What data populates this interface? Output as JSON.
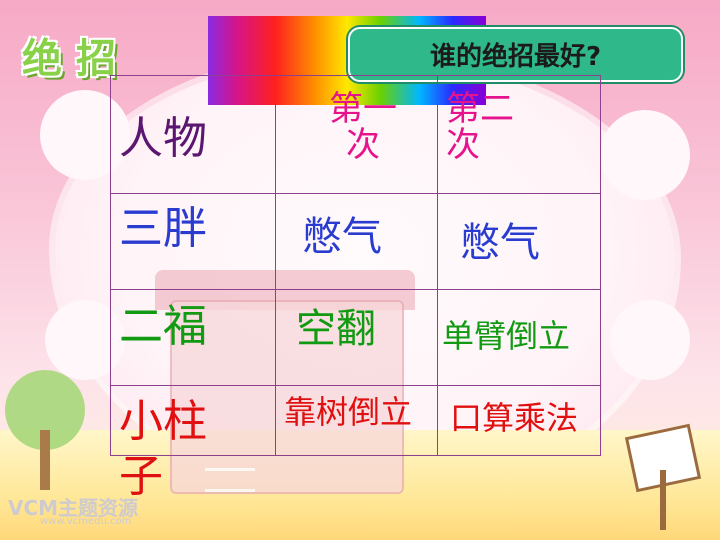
{
  "logo_text": "绝招",
  "banner_text": "谁的绝招最好?",
  "watermark": {
    "brand": "VCM主题资源",
    "url": "www.vcmedu.com"
  },
  "table": {
    "header": {
      "col1": "人物",
      "col2": "第一次",
      "col3": "第二次"
    },
    "rows": [
      {
        "name": "三胖",
        "first": "憋气",
        "second": "憋气"
      },
      {
        "name": "二福",
        "first": "空翻",
        "second": "单臂倒立"
      },
      {
        "name": "小柱子",
        "first": "靠树倒立",
        "second": "口算乘法"
      }
    ]
  },
  "colors": {
    "banner_bg": "#2fb98a",
    "header_text": "#e5148c",
    "name_col_header": "#5a1670",
    "row1_name": "#2a3cd0",
    "row1_actions": "#2a3cd0",
    "row2_name": "#129a12",
    "row2_actions": "#129a12",
    "row3_name": "#e01010",
    "row3_actions": "#e01010",
    "grid_line": "#8e3f8e"
  }
}
